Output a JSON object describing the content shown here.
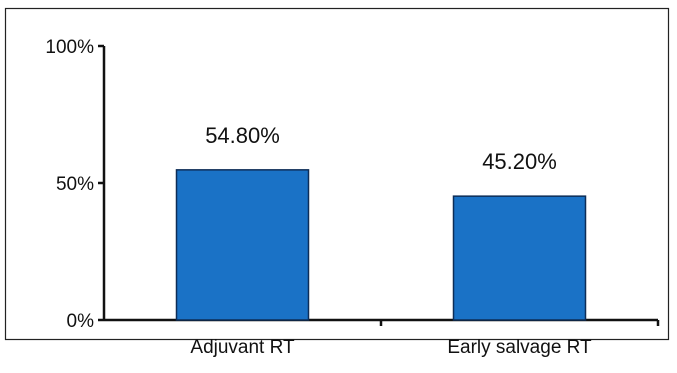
{
  "chart_data": {
    "type": "bar",
    "categories": [
      "Adjuvant RT",
      "Early salvage RT"
    ],
    "values": [
      54.8,
      45.2
    ],
    "value_labels": [
      "54.80%",
      "45.20%"
    ],
    "ylim": [
      0,
      100
    ],
    "yticks": [
      0,
      50,
      100
    ],
    "ytick_labels": [
      "0%",
      "50%",
      "100%"
    ],
    "grid": false,
    "legend": "none",
    "bar_color": "#1a72c6",
    "bar_edge_color": "#0d2d57"
  }
}
